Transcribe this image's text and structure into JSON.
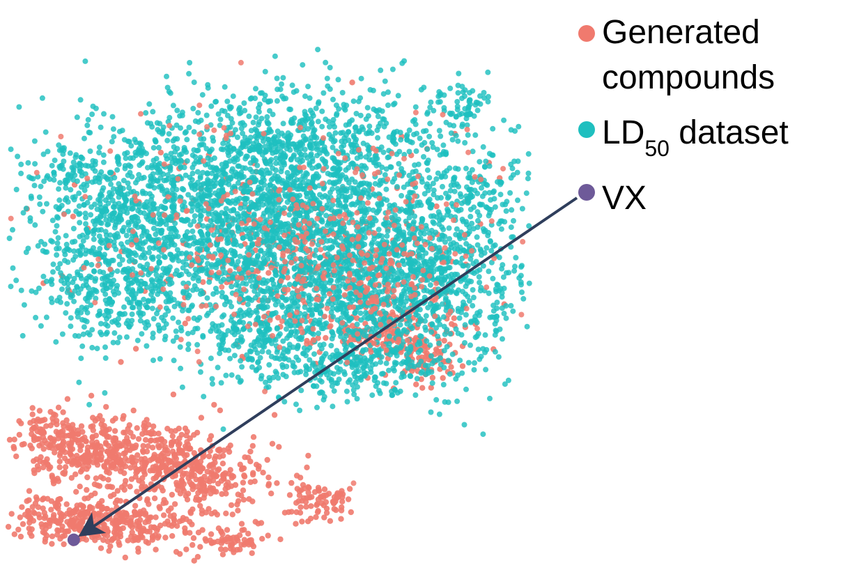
{
  "chart_data": {
    "type": "scatter",
    "title": "",
    "xlabel": "",
    "ylabel": "",
    "grid": false,
    "axes_visible": false,
    "legend_position": "top-right",
    "series": [
      {
        "key": "generated",
        "name": "Generated compounds",
        "name_lines": [
          "Generated",
          "compounds"
        ],
        "color": "#F07A6E",
        "clusters": [
          {
            "cx": 0.22,
            "cy": -0.62,
            "sx": 0.13,
            "sy": 0.07,
            "n": 420
          },
          {
            "cx": 0.48,
            "cy": -0.7,
            "sx": 0.11,
            "sy": 0.08,
            "n": 300
          },
          {
            "cx": 0.12,
            "cy": -0.88,
            "sx": 0.08,
            "sy": 0.05,
            "n": 220
          },
          {
            "cx": 0.3,
            "cy": -0.9,
            "sx": 0.09,
            "sy": 0.05,
            "n": 180
          },
          {
            "cx": 0.6,
            "cy": -0.96,
            "sx": 0.05,
            "sy": 0.03,
            "n": 60
          },
          {
            "cx": 0.85,
            "cy": -0.8,
            "sx": 0.05,
            "sy": 0.04,
            "n": 80
          },
          {
            "cx": 0.05,
            "cy": -0.52,
            "sx": 0.04,
            "sy": 0.04,
            "n": 60
          },
          {
            "cx": 1.05,
            "cy": -0.15,
            "sx": 0.1,
            "sy": 0.06,
            "n": 130
          },
          {
            "cx": 1.18,
            "cy": -0.25,
            "sx": 0.06,
            "sy": 0.06,
            "n": 70
          },
          {
            "cx": 0.75,
            "cy": 0.2,
            "sx": 0.33,
            "sy": 0.22,
            "n": 200
          },
          {
            "cx": 0.95,
            "cy": 0.1,
            "sx": 0.15,
            "sy": 0.1,
            "n": 70
          }
        ]
      },
      {
        "key": "ld50",
        "name": "LD50 dataset",
        "name_main": "LD",
        "name_sub": "50",
        "name_rest": " dataset",
        "color": "#1FBFBF",
        "clusters": [
          {
            "cx": 0.8,
            "cy": 0.22,
            "sx": 0.36,
            "sy": 0.24,
            "n": 2600
          },
          {
            "cx": 0.55,
            "cy": 0.45,
            "sx": 0.22,
            "sy": 0.14,
            "n": 600
          },
          {
            "cx": 1.1,
            "cy": 0.05,
            "sx": 0.18,
            "sy": 0.16,
            "n": 600
          },
          {
            "cx": 0.85,
            "cy": 0.62,
            "sx": 0.22,
            "sy": 0.12,
            "n": 400
          },
          {
            "cx": 0.2,
            "cy": 0.25,
            "sx": 0.12,
            "sy": 0.16,
            "n": 280
          },
          {
            "cx": 0.25,
            "cy": 0.0,
            "sx": 0.1,
            "sy": 0.1,
            "n": 160
          },
          {
            "cx": 0.95,
            "cy": -0.28,
            "sx": 0.14,
            "sy": 0.06,
            "n": 220
          },
          {
            "cx": 0.7,
            "cy": -0.15,
            "sx": 0.1,
            "sy": 0.06,
            "n": 120
          },
          {
            "cx": 1.3,
            "cy": 0.75,
            "sx": 0.05,
            "sy": 0.05,
            "n": 60
          },
          {
            "cx": 0.12,
            "cy": 0.5,
            "sx": 0.05,
            "sy": 0.04,
            "n": 50
          },
          {
            "cx": 1.32,
            "cy": 0.4,
            "sx": 0.05,
            "sy": 0.06,
            "n": 50
          }
        ]
      },
      {
        "key": "vx",
        "name": "VX",
        "color": "#6E5A99",
        "points": [
          {
            "x": 0.12,
            "y": -0.96
          }
        ]
      }
    ],
    "annotations": [
      {
        "type": "arrow",
        "from": "legend-vx-marker",
        "to_point": {
          "x": 0.12,
          "y": -0.96
        },
        "color": "#2F3E5C"
      }
    ],
    "xlim": [
      -0.06,
      1.46
    ],
    "ylim": [
      -1.03,
      1.0
    ]
  }
}
